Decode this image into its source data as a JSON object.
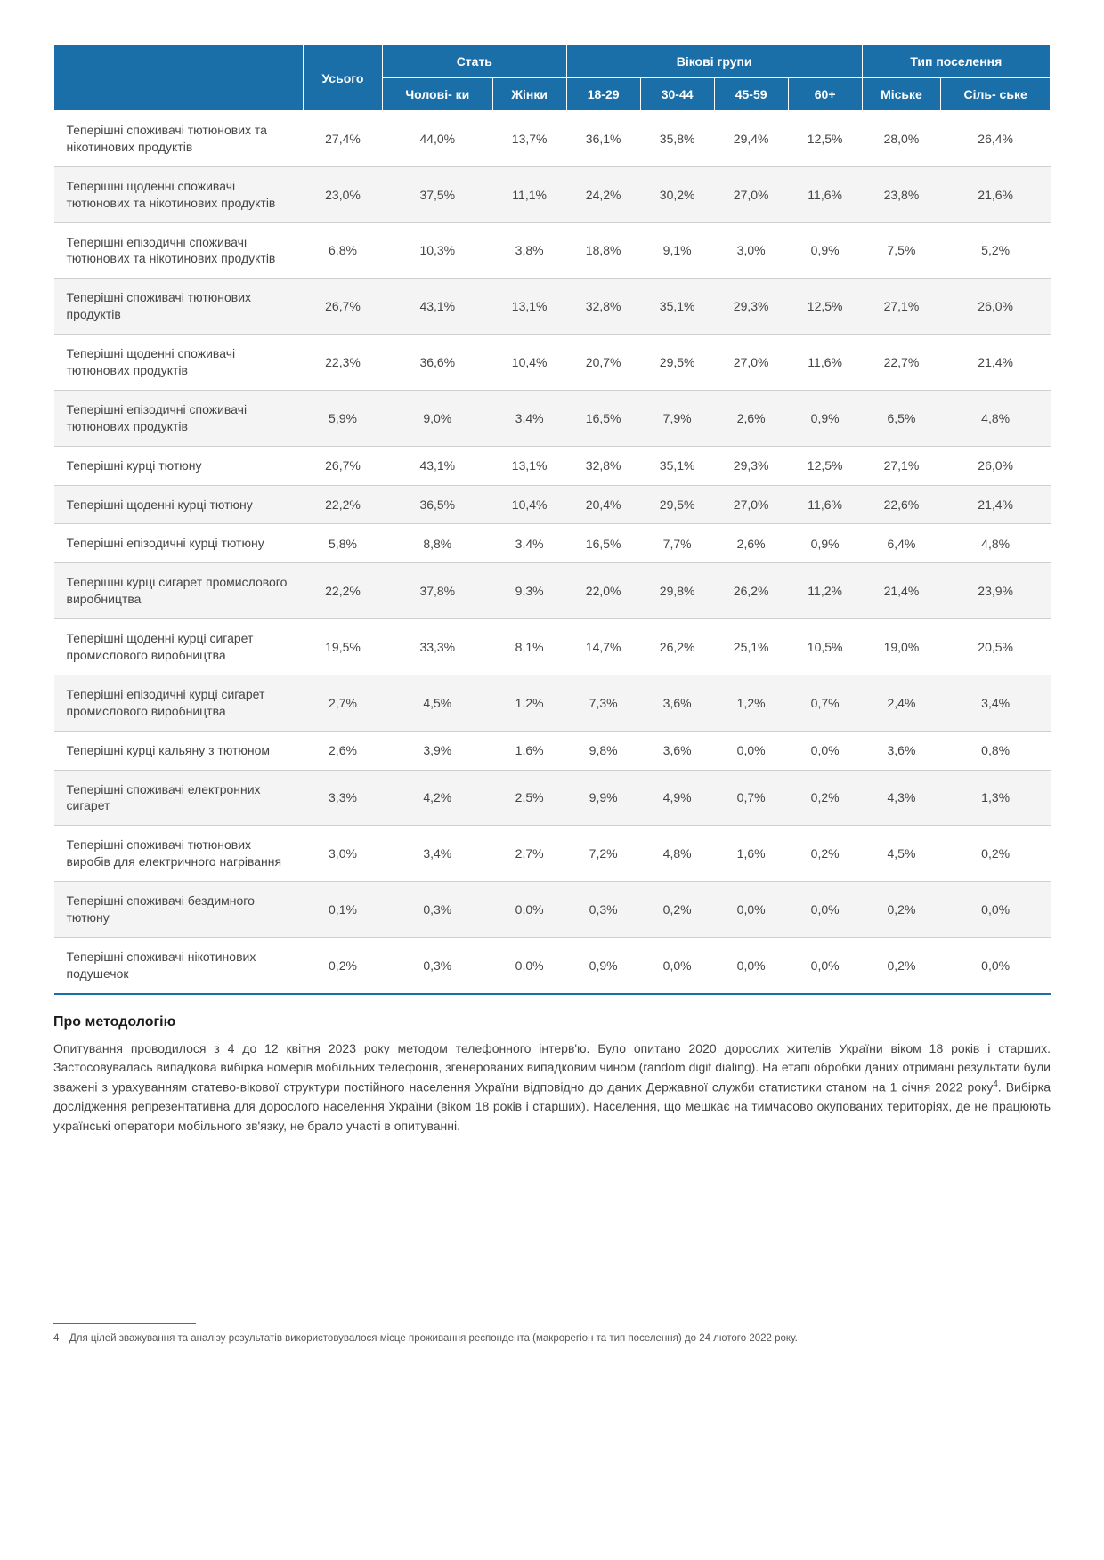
{
  "header": {
    "total": "Усього",
    "gender": "Стать",
    "gender_cols": [
      "Чолові-\nки",
      "Жінки"
    ],
    "age": "Вікові групи",
    "age_cols": [
      "18-29",
      "30-44",
      "45-59",
      "60+"
    ],
    "settlement": "Тип поселення",
    "settlement_cols": [
      "Міське",
      "Сіль-\nське"
    ]
  },
  "rows": [
    {
      "label": "Теперішні споживачі тютюнових та нікотинових продуктів",
      "vals": [
        "27,4%",
        "44,0%",
        "13,7%",
        "36,1%",
        "35,8%",
        "29,4%",
        "12,5%",
        "28,0%",
        "26,4%"
      ]
    },
    {
      "label": "Теперішні щоденні споживачі тютюнових та нікотинових продуктів",
      "vals": [
        "23,0%",
        "37,5%",
        "11,1%",
        "24,2%",
        "30,2%",
        "27,0%",
        "11,6%",
        "23,8%",
        "21,6%"
      ]
    },
    {
      "label": "Теперішні епізодичні споживачі тютюнових та нікотинових продуктів",
      "vals": [
        "6,8%",
        "10,3%",
        "3,8%",
        "18,8%",
        "9,1%",
        "3,0%",
        "0,9%",
        "7,5%",
        "5,2%"
      ]
    },
    {
      "label": "Теперішні споживачі тютюнових продуктів",
      "vals": [
        "26,7%",
        "43,1%",
        "13,1%",
        "32,8%",
        "35,1%",
        "29,3%",
        "12,5%",
        "27,1%",
        "26,0%"
      ]
    },
    {
      "label": "Теперішні щоденні споживачі тютюнових продуктів",
      "vals": [
        "22,3%",
        "36,6%",
        "10,4%",
        "20,7%",
        "29,5%",
        "27,0%",
        "11,6%",
        "22,7%",
        "21,4%"
      ]
    },
    {
      "label": "Теперішні епізодичні споживачі тютюнових продуктів",
      "vals": [
        "5,9%",
        "9,0%",
        "3,4%",
        "16,5%",
        "7,9%",
        "2,6%",
        "0,9%",
        "6,5%",
        "4,8%"
      ]
    },
    {
      "label": "Теперішні курці тютюну",
      "vals": [
        "26,7%",
        "43,1%",
        "13,1%",
        "32,8%",
        "35,1%",
        "29,3%",
        "12,5%",
        "27,1%",
        "26,0%"
      ]
    },
    {
      "label": "Теперішні щоденні курці тютюну",
      "vals": [
        "22,2%",
        "36,5%",
        "10,4%",
        "20,4%",
        "29,5%",
        "27,0%",
        "11,6%",
        "22,6%",
        "21,4%"
      ]
    },
    {
      "label": "Теперішні епізодичні курці тютюну",
      "vals": [
        "5,8%",
        "8,8%",
        "3,4%",
        "16,5%",
        "7,7%",
        "2,6%",
        "0,9%",
        "6,4%",
        "4,8%"
      ]
    },
    {
      "label": "Теперішні курці сигарет промислового виробництва",
      "vals": [
        "22,2%",
        "37,8%",
        "9,3%",
        "22,0%",
        "29,8%",
        "26,2%",
        "11,2%",
        "21,4%",
        "23,9%"
      ]
    },
    {
      "label": "Теперішні щоденні курці сигарет промислового виробництва",
      "vals": [
        "19,5%",
        "33,3%",
        "8,1%",
        "14,7%",
        "26,2%",
        "25,1%",
        "10,5%",
        "19,0%",
        "20,5%"
      ]
    },
    {
      "label": "Теперішні епізодичні курці сигарет промислового виробництва",
      "vals": [
        "2,7%",
        "4,5%",
        "1,2%",
        "7,3%",
        "3,6%",
        "1,2%",
        "0,7%",
        "2,4%",
        "3,4%"
      ]
    },
    {
      "label": "Теперішні курці кальяну з тютюном",
      "vals": [
        "2,6%",
        "3,9%",
        "1,6%",
        "9,8%",
        "3,6%",
        "0,0%",
        "0,0%",
        "3,6%",
        "0,8%"
      ]
    },
    {
      "label": "Теперішні споживачі електронних сигарет",
      "vals": [
        "3,3%",
        "4,2%",
        "2,5%",
        "9,9%",
        "4,9%",
        "0,7%",
        "0,2%",
        "4,3%",
        "1,3%"
      ]
    },
    {
      "label": "Теперішні споживачі тютюнових виробів для електричного нагрівання",
      "vals": [
        "3,0%",
        "3,4%",
        "2,7%",
        "7,2%",
        "4,8%",
        "1,6%",
        "0,2%",
        "4,5%",
        "0,2%"
      ]
    },
    {
      "label": "Теперішні споживачі бездимного тютюну",
      "vals": [
        "0,1%",
        "0,3%",
        "0,0%",
        "0,3%",
        "0,2%",
        "0,0%",
        "0,0%",
        "0,2%",
        "0,0%"
      ]
    },
    {
      "label": "Теперішні споживачі нікотинових подушечок",
      "vals": [
        "0,2%",
        "0,3%",
        "0,0%",
        "0,9%",
        "0,0%",
        "0,0%",
        "0,0%",
        "0,2%",
        "0,0%"
      ]
    }
  ],
  "methodology": {
    "title": "Про методологію",
    "text": "Опитування проводилося з 4 до 12 квітня 2023 року методом телефонного інтерв'ю. Було опитано 2020 дорослих жителів України віком 18 років і старших. Застосовувалась випадкова вибірка номерів мобільних телефонів, згенерованих випадковим чином (random digit dialing). На етапі обробки даних отримані результати були зважені з урахуванням статево-вікової структури постійного населення України відповідно до даних Державної служби статистики станом на 1 січня 2022 року",
    "text2": ". Вибірка дослідження репрезентативна для дорослого населення України (віком 18 років і старших). Населення, що мешкає на тимчасово окупованих територіях, де не працюють українські оператори мобільного зв'язку, не брало участі в опитуванні.",
    "sup": "4"
  },
  "footnote": {
    "num": "4",
    "text": "Для цілей зважування та аналізу результатів використовувалося місце проживання респондента (макрорегіон та тип поселення) до 24 лютого 2022 року."
  },
  "colors": {
    "header_bg": "#1b6fa8",
    "header_fg": "#ffffff",
    "alt_row_bg": "#f4f4f4",
    "border": "#d0d0d0",
    "text": "#444444"
  }
}
